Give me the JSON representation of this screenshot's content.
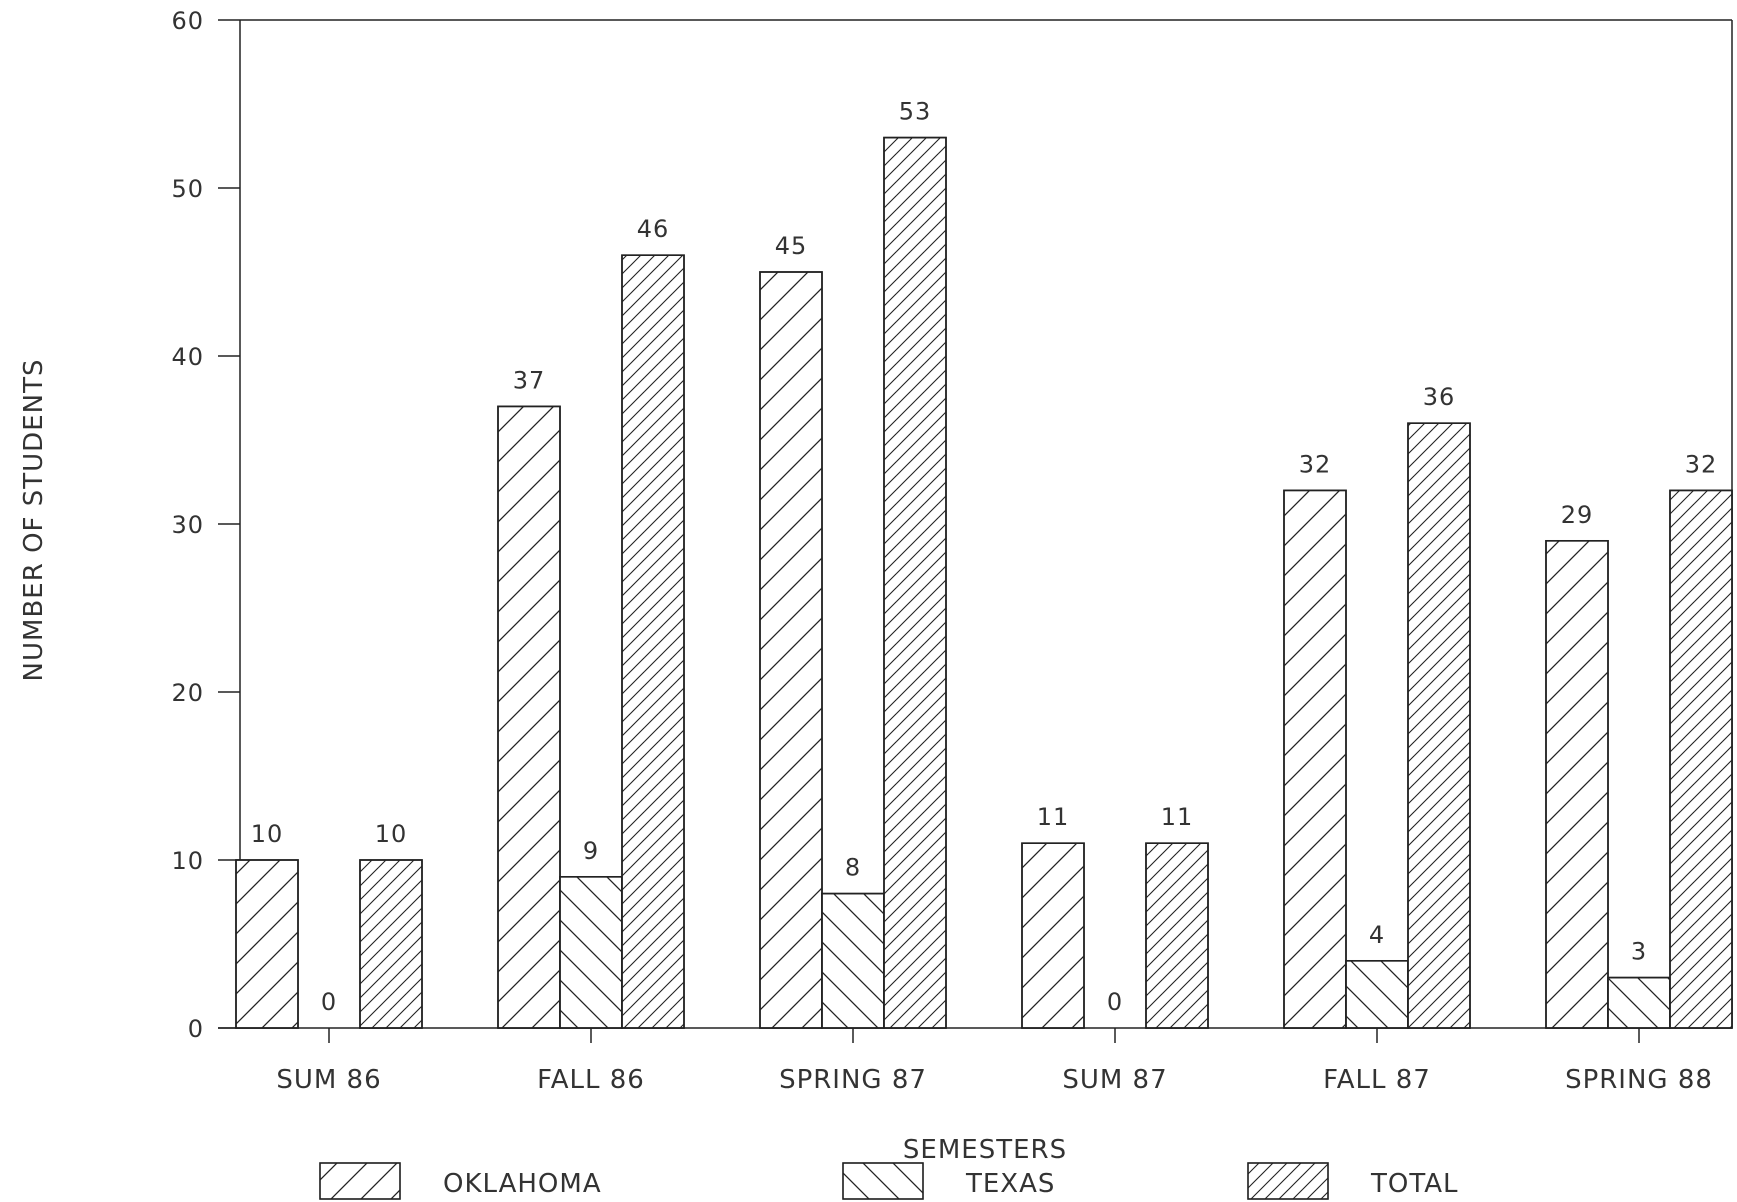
{
  "chart_data": {
    "type": "bar",
    "categories": [
      "SUM 86",
      "FALL 86",
      "SPRING 87",
      "SUM 87",
      "FALL 87",
      "SPRING 88"
    ],
    "series": [
      {
        "name": "OKLAHOMA",
        "values": [
          10,
          37,
          45,
          11,
          32,
          29
        ]
      },
      {
        "name": "TEXAS",
        "values": [
          0,
          9,
          8,
          0,
          4,
          3
        ]
      },
      {
        "name": "TOTAL",
        "values": [
          10,
          46,
          53,
          11,
          36,
          32
        ]
      }
    ],
    "title": "",
    "xlabel": "SEMESTERS",
    "ylabel": "NUMBER OF STUDENTS",
    "ylim": [
      0,
      60
    ],
    "yticks": [
      0,
      10,
      20,
      30,
      40,
      50,
      60
    ],
    "grid": false,
    "legend": "bottom",
    "colors": {
      "stroke": "#222222",
      "text": "#333333",
      "background": "#ffffff"
    }
  }
}
